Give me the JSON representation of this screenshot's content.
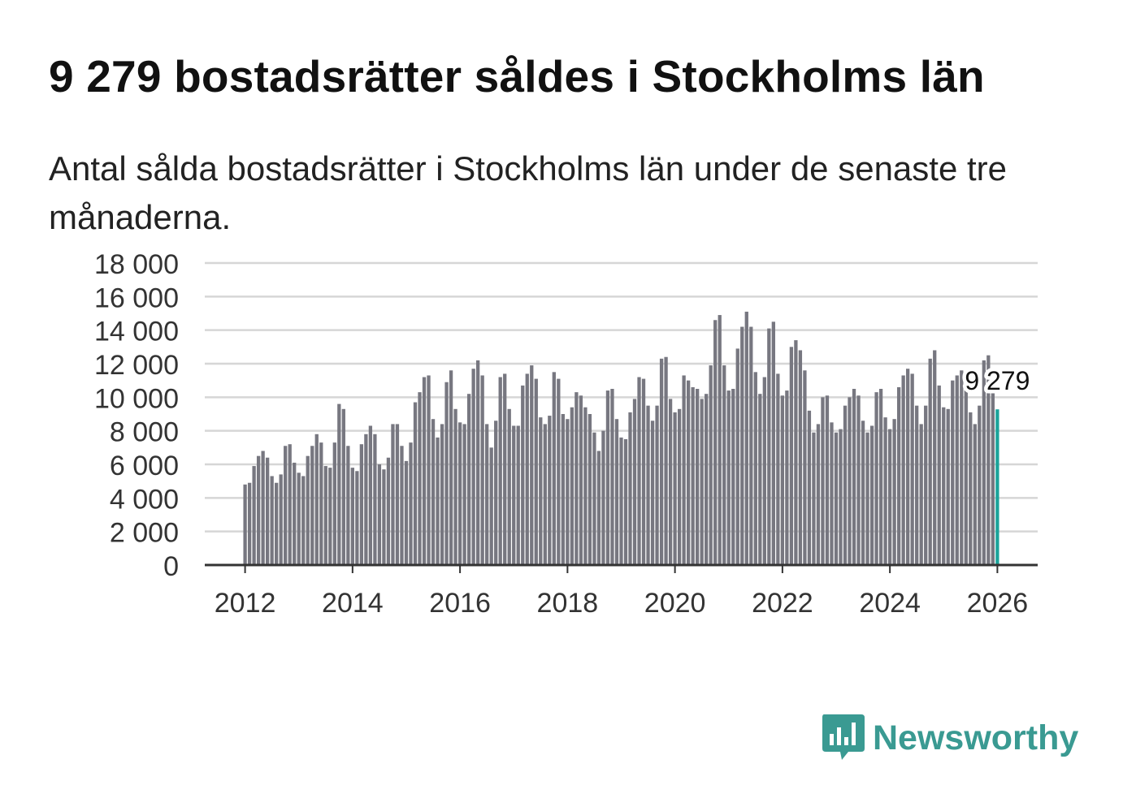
{
  "title": "9 279 bostadsrätter såldes i Stockholms län",
  "subtitle": "Antal sålda bostadsrätter i Stockholms län under de senaste tre månaderna.",
  "brand": {
    "name": "Newsworthy",
    "icon": "bar-chart-speech-bubble-icon",
    "color": "#3a9a92"
  },
  "colors": {
    "bar": "#777780",
    "highlight": "#1aa39a",
    "grid": "#d6d6d6",
    "axis": "#333333"
  },
  "chart_data": {
    "type": "bar",
    "title": "9 279 bostadsrätter såldes i Stockholms län",
    "xlabel": "",
    "ylabel": "",
    "ylim": [
      0,
      18000
    ],
    "yticks": [
      0,
      2000,
      4000,
      6000,
      8000,
      10000,
      12000,
      14000,
      16000,
      18000
    ],
    "ytick_labels": [
      "0",
      "2 000",
      "4 000",
      "6 000",
      "8 000",
      "10 000",
      "12 000",
      "14 000",
      "16 000",
      "18 000"
    ],
    "xticks": [
      2012,
      2014,
      2016,
      2018,
      2020,
      2022,
      2024,
      2026
    ],
    "xtick_labels": [
      "2012",
      "2014",
      "2016",
      "2018",
      "2020",
      "2022",
      "2024",
      "2026"
    ],
    "x_start": 2012.0,
    "x_step": 0.08333,
    "grid": true,
    "highlight_index": 168,
    "highlight_label": "9 279",
    "values": [
      4800,
      4900,
      5900,
      6500,
      6800,
      6400,
      5300,
      4900,
      5400,
      7100,
      7200,
      6100,
      5500,
      5300,
      6500,
      7100,
      7800,
      7300,
      5900,
      5800,
      7300,
      9600,
      9300,
      7100,
      5800,
      5600,
      7200,
      7800,
      8300,
      7800,
      6000,
      5700,
      6400,
      8400,
      8400,
      7100,
      6200,
      7300,
      9700,
      10300,
      11200,
      11300,
      8700,
      7600,
      8400,
      10900,
      11600,
      9300,
      8500,
      8400,
      10200,
      11700,
      12200,
      11300,
      8400,
      7000,
      8600,
      11200,
      11400,
      9300,
      8300,
      8300,
      10700,
      11400,
      11900,
      11100,
      8800,
      8400,
      8900,
      11500,
      11100,
      9000,
      8700,
      9400,
      10300,
      10100,
      9400,
      9000,
      7900,
      6800,
      8000,
      10400,
      10500,
      8700,
      7600,
      7500,
      9100,
      9900,
      11200,
      11100,
      9500,
      8600,
      9500,
      12300,
      12400,
      9900,
      9100,
      9300,
      11300,
      11000,
      10600,
      10500,
      9900,
      10200,
      11900,
      14600,
      14900,
      11900,
      10400,
      10500,
      12900,
      14200,
      15100,
      14200,
      11500,
      10200,
      11200,
      14100,
      14500,
      11400,
      10100,
      10400,
      13000,
      13400,
      12800,
      11600,
      9200,
      7900,
      8400,
      10000,
      10100,
      8500,
      7900,
      8100,
      9500,
      10000,
      10500,
      10100,
      8600,
      7900,
      8300,
      10300,
      10500,
      8800,
      8100,
      8700,
      10600,
      11300,
      11700,
      11400,
      9500,
      8400,
      9500,
      12300,
      12800,
      10700,
      9400,
      9300,
      11000,
      11300,
      11600,
      11000,
      9100,
      8400,
      9500,
      12200,
      12500,
      10500,
      9279
    ]
  }
}
